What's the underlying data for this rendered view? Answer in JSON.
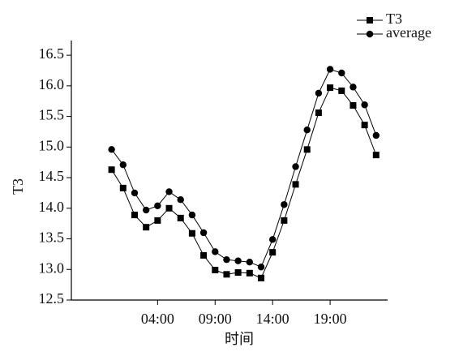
{
  "chart_data": {
    "type": "line",
    "x": [
      0,
      1,
      2,
      3,
      4,
      5,
      6,
      7,
      8,
      9,
      10,
      11,
      12,
      13,
      14,
      15,
      16,
      17,
      18,
      19,
      20,
      21,
      22,
      23
    ],
    "series": [
      {
        "name": "T3",
        "color": "#000000",
        "marker": "square",
        "values": [
          14.63,
          14.33,
          13.89,
          13.69,
          13.8,
          14.0,
          13.84,
          13.59,
          13.23,
          12.99,
          12.92,
          12.95,
          12.94,
          12.86,
          13.28,
          13.8,
          14.39,
          14.96,
          15.56,
          15.97,
          15.92,
          15.68,
          15.36,
          14.87
        ]
      },
      {
        "name": "average",
        "color": "#000000",
        "marker": "circle",
        "values": [
          14.96,
          14.71,
          14.25,
          13.97,
          14.04,
          14.27,
          14.14,
          13.89,
          13.6,
          13.29,
          13.16,
          13.14,
          13.12,
          13.04,
          13.49,
          14.06,
          14.68,
          15.28,
          15.88,
          16.27,
          16.21,
          15.98,
          15.69,
          15.19
        ]
      }
    ],
    "xlabel": "时间",
    "ylabel": "T3",
    "xlim": [
      -3.5,
      24
    ],
    "xticks": [
      {
        "value": 4,
        "label": "04:00"
      },
      {
        "value": 9,
        "label": "09:00"
      },
      {
        "value": 14,
        "label": "14:00"
      },
      {
        "value": 19,
        "label": "19:00"
      }
    ],
    "ylim": [
      12.5,
      16.74
    ],
    "yticks": [
      12.5,
      {
        "value": 13,
        "label": "13.0"
      },
      13.5,
      {
        "value": 14,
        "label": "14.0"
      },
      14.5,
      {
        "value": 15,
        "label": "15.0"
      },
      15.5,
      {
        "value": 16,
        "label": "16.0"
      },
      16.5
    ],
    "legend": "top-right"
  }
}
